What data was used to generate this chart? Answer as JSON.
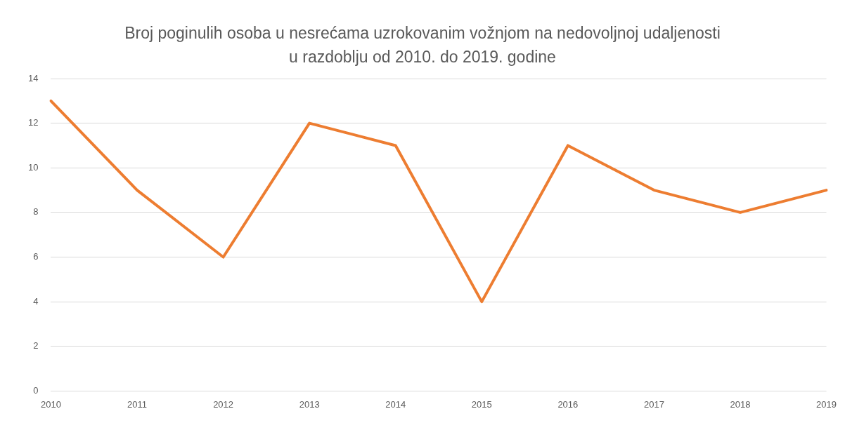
{
  "chart_data": {
    "type": "line",
    "title": "Broj poginulih osoba u nesrećama uzrokovanim vožnjom na nedovoljnoj udaljenosti u razdoblju od 2010. do 2019. godine",
    "categories": [
      "2010",
      "2011",
      "2012",
      "2013",
      "2014",
      "2015",
      "2016",
      "2017",
      "2018",
      "2019"
    ],
    "series": [
      {
        "color": "#ed7d31",
        "values": [
          13,
          9,
          6,
          12,
          11,
          4,
          11,
          9,
          8,
          9
        ]
      }
    ],
    "ylim": [
      0,
      14
    ],
    "yticks": [
      0,
      2,
      4,
      6,
      8,
      10,
      12,
      14
    ],
    "grid": "y",
    "legend": false,
    "marker": "none",
    "line_style": "solid"
  }
}
